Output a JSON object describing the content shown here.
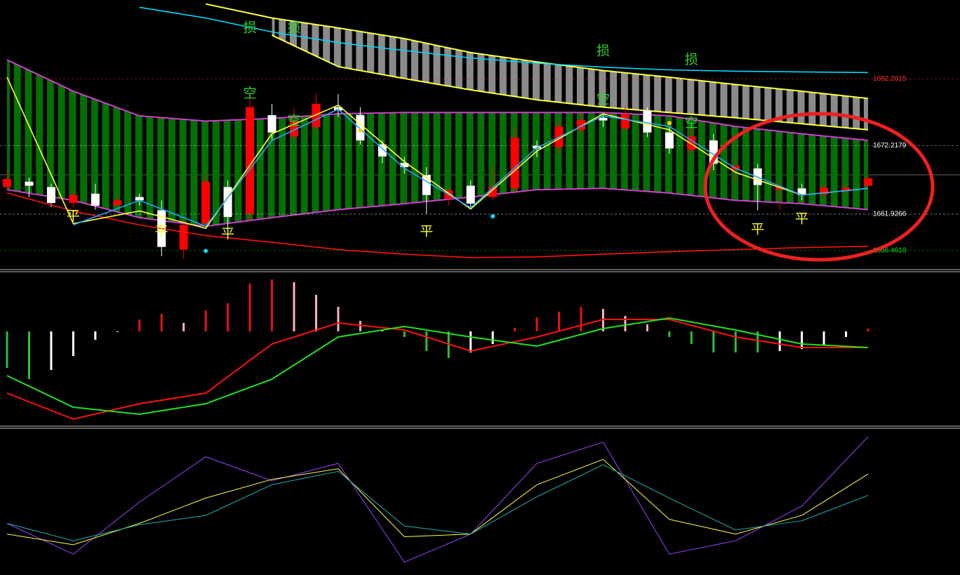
{
  "chart_data": [
    {
      "type": "candlestick",
      "ylim": [
        1653.7,
        1694.1
      ],
      "yticks": [
        1682.2615,
        1672.2179,
        1661.9266,
        1656.4618
      ],
      "ytick_colors": [
        "#ff3030",
        "#ffffff",
        "#ffffff",
        "#00ee00"
      ],
      "up_color": "#ff0000",
      "down_color": "#ffffff",
      "open": [
        1666.0,
        1666.8,
        1666.0,
        1663.6,
        1665.0,
        1663.3,
        1664.5,
        1662.5,
        1656.6,
        1660.5,
        1666.0,
        1662.0,
        1676.8,
        1673.6,
        1675.0,
        1678.0,
        1676.8,
        1672.4,
        1669.6,
        1667.8,
        1664.2,
        1666.2,
        1664.5,
        1665.8,
        1672.2,
        1672.0,
        1674.6,
        1676.4,
        1674.8,
        1677.5,
        1674.2,
        1671.6,
        1673.0,
        1668.6,
        1668.8,
        1665.6,
        1665.8,
        1664.9,
        1665.4,
        1666.2
      ],
      "close": [
        1667.2,
        1666.2,
        1663.6,
        1664.8,
        1663.2,
        1664.0,
        1664.0,
        1657.0,
        1660.3,
        1666.8,
        1661.5,
        1678.0,
        1674.2,
        1676.0,
        1678.5,
        1677.5,
        1673.0,
        1670.6,
        1669.0,
        1664.8,
        1665.5,
        1663.5,
        1666.0,
        1673.4,
        1671.8,
        1675.1,
        1676.1,
        1676.0,
        1677.0,
        1674.2,
        1671.8,
        1673.6,
        1669.5,
        1669.2,
        1666.3,
        1666.0,
        1664.8,
        1665.9,
        1665.9,
        1667.3
      ],
      "high": [
        1668.5,
        1667.4,
        1666.5,
        1665.5,
        1666.5,
        1664.8,
        1665.0,
        1664.0,
        1661.0,
        1668.0,
        1667.0,
        1679.5,
        1678.5,
        1677.8,
        1680.0,
        1680.0,
        1678.0,
        1673.0,
        1670.5,
        1669.0,
        1666.0,
        1667.0,
        1669.0,
        1675.0,
        1673.0,
        1676.0,
        1677.0,
        1677.0,
        1678.0,
        1678.0,
        1675.0,
        1675.0,
        1674.0,
        1670.0,
        1669.5,
        1667.0,
        1666.5,
        1666.5,
        1666.3,
        1667.8
      ],
      "low": [
        1665.5,
        1664.5,
        1663.0,
        1663.0,
        1662.6,
        1662.8,
        1663.2,
        1655.6,
        1655.2,
        1659.8,
        1659.0,
        1661.0,
        1673.0,
        1673.0,
        1674.5,
        1676.5,
        1672.4,
        1669.6,
        1668.0,
        1662.0,
        1663.2,
        1662.8,
        1664.0,
        1665.0,
        1670.5,
        1671.0,
        1674.0,
        1675.0,
        1674.4,
        1673.5,
        1671.0,
        1671.0,
        1668.5,
        1667.0,
        1662.5,
        1662.6,
        1664.0,
        1664.5,
        1665.0,
        1666.0
      ],
      "line_x": [
        0,
        3,
        6,
        9,
        12,
        15,
        18,
        21,
        24,
        27,
        30,
        33,
        36,
        39
      ],
      "bands": [
        {
          "color": "#007000",
          "edge_color": "#d040d0",
          "upper": [
            1685.1,
            1680.4,
            1676.7,
            1675.9,
            1676.3,
            1677.0,
            1677.2,
            1677.2,
            1677.2,
            1677.2,
            1676.7,
            1675.1,
            1674.0,
            1673.0
          ],
          "lower": [
            1665.6,
            1664.0,
            1661.4,
            1660.1,
            1661.4,
            1662.6,
            1663.5,
            1664.5,
            1665.6,
            1665.8,
            1665.1,
            1664.0,
            1663.5,
            1662.6
          ]
        },
        {
          "color": "#8a8a8a",
          "edge_color": "#ffff40",
          "upper": [
            null,
            null,
            null,
            1693.5,
            1691.4,
            1689.9,
            1688.3,
            1686.2,
            1684.8,
            1683.5,
            1682.5,
            1681.4,
            1680.4,
            1679.3
          ],
          "lower": [
            null,
            null,
            null,
            null,
            1688.8,
            1684.1,
            1682.3,
            1680.6,
            1679.1,
            1678.0,
            1677.2,
            1676.4,
            1675.5,
            1674.6
          ]
        }
      ],
      "series": [
        {
          "color": "#00d8ff",
          "values": [
            null,
            null,
            1693.0,
            1691.4,
            1689.3,
            1687.7,
            1686.5,
            1685.4,
            1684.6,
            1684.0,
            1683.6,
            1683.4,
            1683.3,
            1683.2
          ]
        },
        {
          "color": "#ff1010",
          "values": [
            1665.1,
            1662.4,
            1660.3,
            1658.7,
            1657.7,
            1656.6,
            1655.9,
            1655.4,
            1655.5,
            1655.9,
            1656.3,
            1656.6,
            1656.9,
            1657.1
          ]
        },
        {
          "color": "#ffff30",
          "values": [
            1682.5,
            1660.5,
            1662.4,
            1659.8,
            1674.0,
            1678.3,
            1669.8,
            1662.7,
            1671.4,
            1677.0,
            1674.6,
            1668.2,
            1664.8,
            1665.8
          ]
        },
        {
          "color": "#20a8ff",
          "values": [
            null,
            1660.3,
            1664.0,
            1660.1,
            1673.0,
            1677.7,
            1668.8,
            1662.9,
            1671.9,
            1676.7,
            1675.1,
            1668.8,
            1664.8,
            1665.8
          ]
        }
      ],
      "annotations": [
        {
          "text": "损",
          "x": 11,
          "y": 1689.9,
          "color": "#30d030"
        },
        {
          "text": "损",
          "x": 13,
          "y": 1689.9,
          "color": "#30d030"
        },
        {
          "text": "损",
          "x": 27,
          "y": 1686.4,
          "color": "#30d030"
        },
        {
          "text": "损",
          "x": 31,
          "y": 1685.1,
          "color": "#30d030"
        },
        {
          "text": "空",
          "x": 11,
          "y": 1680.0,
          "color": "#30d030"
        },
        {
          "text": "空",
          "x": 13,
          "y": 1675.9,
          "color": "#30d030"
        },
        {
          "text": "空",
          "x": 27,
          "y": 1679.1,
          "color": "#30d030"
        },
        {
          "text": "空",
          "x": 31,
          "y": 1675.6,
          "color": "#30d030"
        },
        {
          "text": "平",
          "x": 3,
          "y": 1661.6,
          "color": "#ffff30"
        },
        {
          "text": "平",
          "x": 7,
          "y": 1659.3,
          "color": "#ffff30"
        },
        {
          "text": "平",
          "x": 10,
          "y": 1658.9,
          "color": "#ffff30"
        },
        {
          "text": "平",
          "x": 19,
          "y": 1659.3,
          "color": "#ffff30"
        },
        {
          "text": "平",
          "x": 34,
          "y": 1659.6,
          "color": "#ffff30"
        },
        {
          "text": "平",
          "x": 36,
          "y": 1661.2,
          "color": "#ffff30"
        }
      ],
      "dots": [
        {
          "x": 9,
          "y": 1656.4,
          "color": "#00e0ff"
        },
        {
          "x": 22,
          "y": 1661.6,
          "color": "#00e0ff"
        },
        {
          "x": 16,
          "y": 1674.5,
          "color": "#ffd000"
        },
        {
          "x": 30,
          "y": 1675.6,
          "color": "#ffd000"
        }
      ]
    },
    {
      "type": "histogram-line",
      "ylim": [
        -1.33,
        0.84
      ],
      "values": [
        -0.52,
        -0.68,
        -0.55,
        -0.35,
        -0.12,
        -0.01,
        0.17,
        0.25,
        0.12,
        0.3,
        0.4,
        0.68,
        0.74,
        0.7,
        0.52,
        0.35,
        0.15,
        0.02,
        -0.08,
        -0.28,
        -0.38,
        -0.3,
        -0.18,
        0.05,
        0.2,
        0.28,
        0.35,
        0.32,
        0.22,
        0.1,
        -0.08,
        -0.18,
        -0.3,
        -0.3,
        -0.3,
        -0.28,
        -0.25,
        -0.2,
        -0.08,
        0.04
      ],
      "line_x": [
        0,
        3,
        6,
        9,
        12,
        15,
        18,
        21,
        24,
        27,
        30,
        33,
        36,
        39
      ],
      "series": [
        {
          "color": "#ff1010",
          "values": [
            -0.88,
            -1.25,
            -1.03,
            -0.88,
            -0.18,
            0.12,
            0.02,
            -0.28,
            -0.08,
            0.17,
            0.17,
            -0.08,
            -0.23,
            -0.23
          ]
        },
        {
          "color": "#20e020",
          "values": [
            -0.63,
            -1.08,
            -1.18,
            -1.03,
            -0.68,
            -0.08,
            0.07,
            -0.08,
            -0.21,
            0.04,
            0.19,
            0.02,
            -0.18,
            -0.23
          ]
        }
      ]
    },
    {
      "type": "line",
      "ylim": [
        -3.7,
        105.3
      ],
      "line_x": [
        0,
        3,
        6,
        9,
        12,
        15,
        18,
        21,
        24,
        27,
        30,
        33,
        36,
        39
      ],
      "series": [
        {
          "color": "#9a40ff",
          "values": [
            35,
            12,
            51,
            85,
            67,
            80,
            6,
            27,
            80,
            96,
            12,
            22,
            48,
            100
          ]
        },
        {
          "color": "#ffff40",
          "values": [
            27,
            19,
            35,
            54,
            68,
            76,
            25,
            27,
            64,
            83,
            38,
            27,
            41,
            72
          ]
        },
        {
          "color": "#20b0b0",
          "values": [
            35,
            22,
            34,
            41,
            64,
            74,
            33,
            27,
            55,
            79,
            54,
            30,
            37,
            56
          ]
        }
      ]
    }
  ]
}
